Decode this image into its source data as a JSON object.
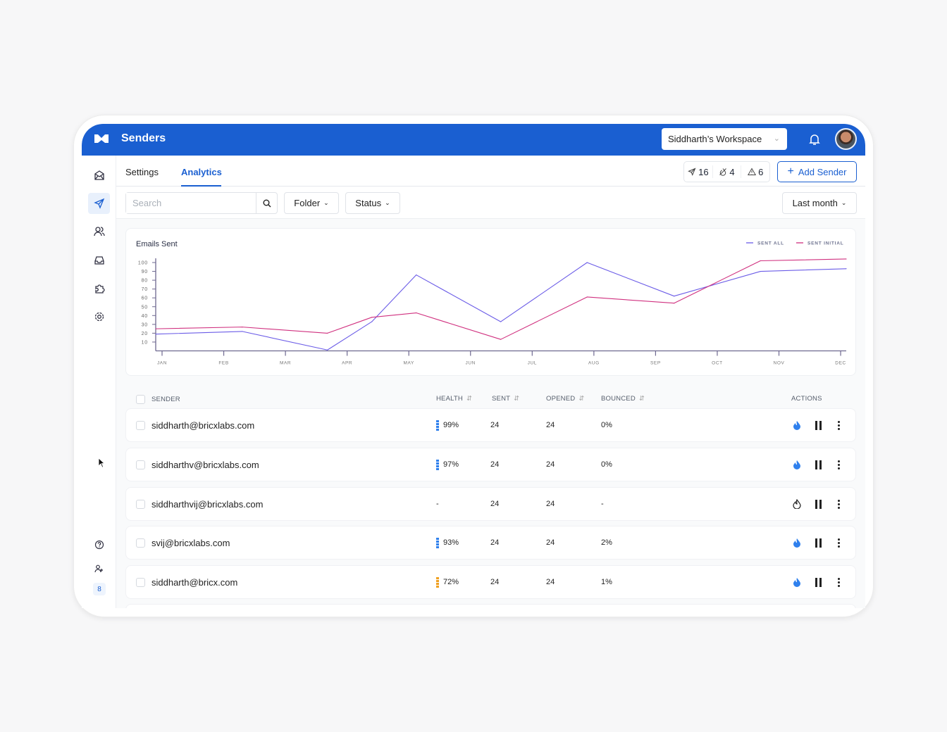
{
  "header": {
    "title": "Senders",
    "workspace": "Siddharth’s Workspace",
    "colors": {
      "brand": "#1a5fd1"
    },
    "icons": [
      "logo-m",
      "bell-icon",
      "avatar"
    ]
  },
  "sidebar": {
    "items": [
      "inbox-icon",
      "send-icon",
      "users-icon",
      "mailbox-icon",
      "puzzle-icon",
      "gear-icon"
    ],
    "active": "send-icon",
    "bottom": [
      "help-icon",
      "team-icon"
    ],
    "badge": "8"
  },
  "tabs": [
    {
      "label": "Settings",
      "active": false
    },
    {
      "label": "Analytics",
      "active": true
    }
  ],
  "stats": {
    "sent": "16",
    "warmup": "4",
    "warnings": "6"
  },
  "add_sender_label": "Add Sender",
  "filters": {
    "search_placeholder": "Search",
    "search_value": "",
    "folder": "Folder",
    "status": "Status",
    "range": "Last month"
  },
  "chart_data": {
    "type": "line",
    "title": "Emails Sent",
    "xlabel": "",
    "ylabel": "",
    "categories": [
      "JAN",
      "FEB",
      "MAR",
      "APR",
      "MAY",
      "JUN",
      "JUL",
      "AUG",
      "SEP",
      "OCT",
      "NOV",
      "DEC"
    ],
    "yticks": [
      10,
      20,
      30,
      40,
      50,
      60,
      70,
      80,
      90,
      100
    ],
    "ylim": [
      0,
      105
    ],
    "legend": "top-right",
    "grid": false,
    "series": [
      {
        "name": "SENT ALL",
        "color": "#6b5ce7",
        "x": [
          -0.1,
          1.3,
          2.68,
          3.4,
          4.12,
          5.49,
          6.89,
          8.3,
          9.7,
          11.09
        ],
        "values": [
          19,
          22,
          1,
          33,
          86,
          33,
          100,
          62,
          90,
          93
        ]
      },
      {
        "name": "SENT INITIAL",
        "color": "#d0307f",
        "x": [
          -0.1,
          1.3,
          2.68,
          3.4,
          4.12,
          5.49,
          6.89,
          8.3,
          9.7,
          11.09
        ],
        "values": [
          25,
          27,
          20,
          38,
          43,
          13,
          61,
          54,
          102,
          104
        ]
      }
    ]
  },
  "table": {
    "headers": {
      "sender": "SENDER",
      "health": "HEALTH",
      "sent": "SENT",
      "opened": "OPENED",
      "bounced": "BOUNCED",
      "actions": "ACTIONS"
    },
    "rows": [
      {
        "email": "siddharth@bricxlabs.com",
        "health": "99%",
        "health_color": "#2f80ed",
        "sent": "24",
        "opened": "24",
        "bounced": "0%",
        "warmup": "active"
      },
      {
        "email": "siddharthv@bricxlabs.com",
        "health": "97%",
        "health_color": "#2f80ed",
        "sent": "24",
        "opened": "24",
        "bounced": "0%",
        "warmup": "active"
      },
      {
        "email": "siddharthvij@bricxlabs.com",
        "health": "-",
        "health_color": "",
        "sent": "24",
        "opened": "24",
        "bounced": "-",
        "warmup": "inactive"
      },
      {
        "email": "svij@bricxlabs.com",
        "health": "93%",
        "health_color": "#2f80ed",
        "sent": "24",
        "opened": "24",
        "bounced": "2%",
        "warmup": "active"
      },
      {
        "email": "siddharth@bricx.com",
        "health": "72%",
        "health_color": "#f0a020",
        "sent": "24",
        "opened": "24",
        "bounced": "1%",
        "warmup": "active"
      }
    ]
  }
}
